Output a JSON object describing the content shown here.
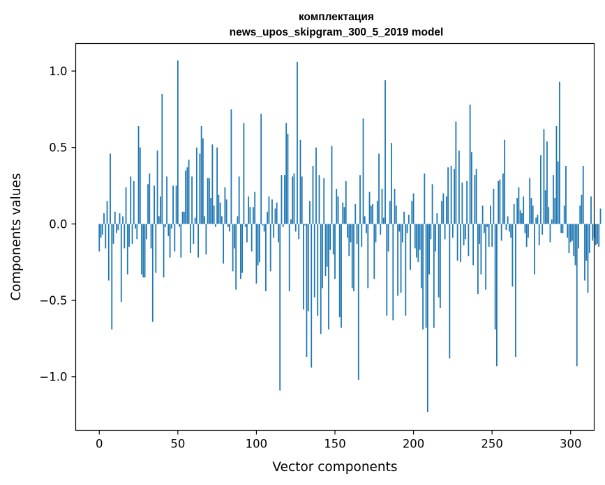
{
  "chart_data": {
    "type": "bar",
    "title": "комплектация",
    "subtitle": "news_upos_skipgram_300_5_2019 model",
    "xlabel": "Vector components",
    "ylabel": "Components values",
    "xlim": [
      -15,
      315
    ],
    "ylim": [
      -1.35,
      1.18
    ],
    "xticks": [
      0,
      50,
      100,
      150,
      200,
      250,
      300
    ],
    "xtick_labels": [
      "0",
      "50",
      "100",
      "150",
      "200",
      "250",
      "300"
    ],
    "yticks": [
      -1.0,
      -0.5,
      0.0,
      0.5,
      1.0
    ],
    "ytick_labels": [
      "−1.0",
      "−0.5",
      "0.0",
      "0.5",
      "1.0"
    ],
    "bar_color": "#1f77b4",
    "values": [
      -0.18,
      -0.09,
      -0.07,
      0.07,
      -0.16,
      0.15,
      -0.37,
      0.46,
      -0.69,
      -0.13,
      0.08,
      -0.06,
      -0.04,
      0.07,
      -0.51,
      0.05,
      -0.16,
      0.24,
      -0.33,
      -0.15,
      0.31,
      -0.13,
      0.28,
      -0.03,
      -0.1,
      0.64,
      0.5,
      -0.33,
      -0.35,
      -0.35,
      -0.1,
      0.26,
      0.33,
      -0.16,
      -0.64,
      0.25,
      -0.32,
      0.48,
      0.05,
      0.18,
      0.85,
      -0.35,
      -0.02,
      0.31,
      -0.08,
      -0.22,
      -0.03,
      0.25,
      -0.18,
      0.25,
      1.07,
      -0.02,
      -0.22,
      0.08,
      0.08,
      0.35,
      0.37,
      0.42,
      -0.19,
      0.31,
      -0.13,
      0.04,
      0.5,
      -0.22,
      0.46,
      0.64,
      0.56,
      0.05,
      -0.2,
      0.3,
      0.3,
      0.17,
      0.52,
      0.12,
      -0.02,
      0.5,
      0.19,
      0.14,
      0.05,
      -0.26,
      0.24,
      0.16,
      -0.02,
      -0.05,
      0.75,
      -0.31,
      -0.16,
      -0.43,
      0.05,
      0.31,
      -0.36,
      -0.32,
      0.66,
      -0.02,
      -0.12,
      0.18,
      0.11,
      -0.18,
      0.11,
      0.21,
      -0.39,
      -0.27,
      -0.25,
      0.72,
      -0.01,
      -0.05,
      -0.44,
      0.08,
      0.18,
      -0.31,
      0.16,
      -0.09,
      0.1,
      0.14,
      -0.12,
      -1.09,
      0.32,
      -0.02,
      0.32,
      0.66,
      0.59,
      -0.44,
      0.03,
      0.31,
      0.33,
      -0.05,
      1.06,
      -0.1,
      0.55,
      0.31,
      -0.56,
      -0.01,
      -0.87,
      -0.57,
      0.15,
      -0.94,
      0.38,
      -0.48,
      0.5,
      -0.6,
      0.32,
      -0.72,
      -0.42,
      0.3,
      -0.34,
      -0.28,
      -0.69,
      -0.17,
      0.51,
      -0.2,
      -0.36,
      0.23,
      0.18,
      -0.61,
      -0.68,
      0.14,
      0.11,
      0.28,
      -0.09,
      -0.21,
      -0.12,
      -0.42,
      -0.44,
      0.13,
      -0.13,
      -1.02,
      0.32,
      -0.15,
      0.69,
      0.05,
      -0.06,
      -0.42,
      0.21,
      0.12,
      0.13,
      -0.36,
      -0.12,
      0.15,
      0.46,
      -0.07,
      0.23,
      0.04,
      0.94,
      -0.6,
      -0.18,
      0.15,
      0.53,
      -0.63,
      0.23,
      0.12,
      -0.47,
      -0.05,
      -0.45,
      -0.12,
      0.08,
      -0.6,
      -0.06,
      0.06,
      -0.3,
      0.15,
      0.2,
      -0.16,
      -0.22,
      -0.25,
      -0.17,
      -0.42,
      -0.69,
      0.33,
      -0.68,
      -1.23,
      -0.33,
      -0.1,
      0.26,
      -0.68,
      -0.18,
      0.07,
      -0.48,
      -0.55,
      0.15,
      0.2,
      -0.1,
      0.18,
      0.37,
      -0.88,
      0.38,
      -0.09,
      0.36,
      0.67,
      -0.24,
      0.48,
      -0.25,
      0.27,
      -0.14,
      -0.1,
      0.28,
      -0.21,
      0.78,
      0.47,
      -0.27,
      0.32,
      0.36,
      -0.46,
      -0.13,
      -0.33,
      0.12,
      -0.06,
      -0.43,
      -0.02,
      -0.15,
      0.12,
      -0.15,
      0.23,
      -0.69,
      -0.93,
      0.28,
      0.29,
      -0.11,
      0.33,
      0.55,
      -0.04,
      0.05,
      -0.05,
      -0.09,
      -0.41,
      0.13,
      -0.87,
      0.17,
      0.24,
      0.09,
      0.07,
      0.18,
      -0.06,
      -0.15,
      -0.09,
      0.3,
      0.17,
      0.12,
      -0.33,
      0.04,
      0.06,
      -0.14,
      0.45,
      -0.07,
      0.62,
      0.22,
      0.54,
      0.11,
      -0.12,
      0.03,
      0.32,
      0.17,
      0.64,
      0.41,
      0.93,
      -0.06,
      -0.06,
      0.12,
      0.38,
      -0.09,
      -0.19,
      -0.12,
      -0.11,
      -0.21,
      -0.27,
      -0.93,
      -0.16,
      0.12,
      0.19,
      0.38,
      -0.37,
      -0.24,
      -0.45,
      -0.19,
      0.18,
      -0.11,
      -0.09,
      -0.14,
      -0.13,
      -0.15,
      0.1
    ]
  }
}
